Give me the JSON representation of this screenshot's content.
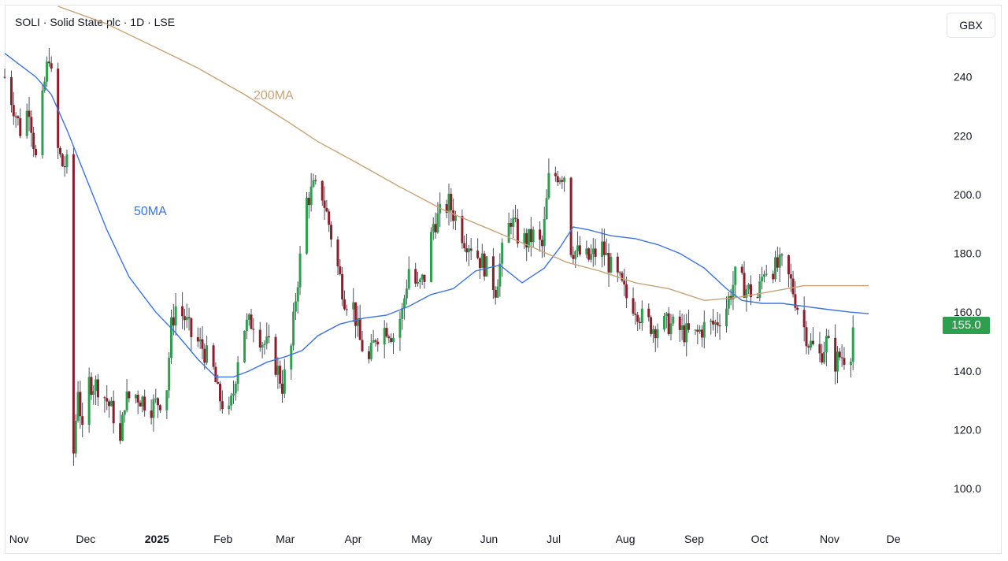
{
  "header": {
    "title": "SOLI · Solid State plc · 1D · LSE",
    "currency": "GBX"
  },
  "colors": {
    "up": "#2e9e4f",
    "down": "#8b1e2b",
    "ma50": "#3b73e0",
    "ma200": "#c8a276"
  },
  "chart_data": {
    "type": "candlestick",
    "symbol": "SOLI",
    "timeframe": "1D",
    "exchange": "LSE",
    "currency": "GBX",
    "last_price": "155.0",
    "y_ticks": [
      "100.0",
      "120.0",
      "140.0",
      "160.0",
      "180.0",
      "200.0",
      "220",
      "240"
    ],
    "ylim": [
      88,
      264
    ],
    "x_ticks": [
      {
        "label": "Nov",
        "date": "2024-11-01"
      },
      {
        "label": "Dec",
        "date": "2024-12-01"
      },
      {
        "label": "2025",
        "date": "2025-01-01",
        "bold": true
      },
      {
        "label": "Feb",
        "date": "2025-02-01"
      },
      {
        "label": "Mar",
        "date": "2025-03-01"
      },
      {
        "label": "Apr",
        "date": "2025-04-01"
      },
      {
        "label": "May",
        "date": "2025-05-01"
      },
      {
        "label": "Jun",
        "date": "2025-06-01"
      },
      {
        "label": "Jul",
        "date": "2025-07-01"
      },
      {
        "label": "Aug",
        "date": "2025-08-01"
      },
      {
        "label": "Sep",
        "date": "2025-09-01"
      },
      {
        "label": "Oct",
        "date": "2025-10-01"
      },
      {
        "label": "Nov",
        "date": "2025-11-01"
      },
      {
        "label": "De",
        "date": "2025-12-01"
      }
    ],
    "xlim": [
      "2024-10-25",
      "2025-12-10"
    ],
    "close_path": [
      [
        "2024-10-25",
        240
      ],
      [
        "2024-10-29",
        230
      ],
      [
        "2024-11-01",
        222
      ],
      [
        "2024-11-05",
        230
      ],
      [
        "2024-11-08",
        212
      ],
      [
        "2024-11-12",
        238
      ],
      [
        "2024-11-14",
        248
      ],
      [
        "2024-11-18",
        215
      ],
      [
        "2024-11-20",
        210
      ],
      [
        "2024-11-22",
        210
      ],
      [
        "2024-11-25",
        112
      ],
      [
        "2024-11-27",
        135
      ],
      [
        "2024-11-29",
        118
      ],
      [
        "2024-12-02",
        136
      ],
      [
        "2024-12-06",
        135
      ],
      [
        "2024-12-10",
        130
      ],
      [
        "2024-12-13",
        125
      ],
      [
        "2024-12-16",
        115
      ],
      [
        "2024-12-18",
        130
      ],
      [
        "2024-12-23",
        132
      ],
      [
        "2024-12-30",
        128
      ],
      [
        "2025-01-03",
        130
      ],
      [
        "2025-01-06",
        135
      ],
      [
        "2025-01-08",
        155
      ],
      [
        "2025-01-10",
        162
      ],
      [
        "2025-01-14",
        158
      ],
      [
        "2025-01-17",
        152
      ],
      [
        "2025-01-22",
        148
      ],
      [
        "2025-01-27",
        140
      ],
      [
        "2025-01-29",
        132
      ],
      [
        "2025-02-03",
        125
      ],
      [
        "2025-02-05",
        133
      ],
      [
        "2025-02-07",
        145
      ],
      [
        "2025-02-10",
        155
      ],
      [
        "2025-02-14",
        157
      ],
      [
        "2025-02-18",
        150
      ],
      [
        "2025-02-21",
        148
      ],
      [
        "2025-02-25",
        140
      ],
      [
        "2025-02-27",
        135
      ],
      [
        "2025-03-03",
        148
      ],
      [
        "2025-03-05",
        165
      ],
      [
        "2025-03-07",
        178
      ],
      [
        "2025-03-10",
        198
      ],
      [
        "2025-03-13",
        202
      ],
      [
        "2025-03-17",
        200
      ],
      [
        "2025-03-20",
        190
      ],
      [
        "2025-03-24",
        175
      ],
      [
        "2025-03-27",
        165
      ],
      [
        "2025-03-31",
        162
      ],
      [
        "2025-04-03",
        150
      ],
      [
        "2025-04-07",
        143
      ],
      [
        "2025-04-10",
        152
      ],
      [
        "2025-04-15",
        155
      ],
      [
        "2025-04-18",
        152
      ],
      [
        "2025-04-22",
        160
      ],
      [
        "2025-04-25",
        175
      ],
      [
        "2025-04-29",
        168
      ],
      [
        "2025-05-02",
        172
      ],
      [
        "2025-05-06",
        190
      ],
      [
        "2025-05-09",
        193
      ],
      [
        "2025-05-13",
        197
      ],
      [
        "2025-05-16",
        192
      ],
      [
        "2025-05-20",
        185
      ],
      [
        "2025-05-23",
        183
      ],
      [
        "2025-05-27",
        178
      ],
      [
        "2025-05-30",
        175
      ],
      [
        "2025-06-03",
        168
      ],
      [
        "2025-06-06",
        180
      ],
      [
        "2025-06-10",
        192
      ],
      [
        "2025-06-13",
        186
      ],
      [
        "2025-06-17",
        184
      ],
      [
        "2025-06-20",
        186
      ],
      [
        "2025-06-24",
        182
      ],
      [
        "2025-06-27",
        205
      ],
      [
        "2025-07-01",
        207
      ],
      [
        "2025-07-04",
        207
      ],
      [
        "2025-07-07",
        182
      ],
      [
        "2025-07-10",
        180
      ],
      [
        "2025-07-15",
        178
      ],
      [
        "2025-07-21",
        182
      ],
      [
        "2025-07-25",
        175
      ],
      [
        "2025-07-29",
        170
      ],
      [
        "2025-08-01",
        165
      ],
      [
        "2025-08-05",
        162
      ],
      [
        "2025-08-08",
        158
      ],
      [
        "2025-08-13",
        155
      ],
      [
        "2025-08-20",
        156
      ],
      [
        "2025-08-27",
        153
      ],
      [
        "2025-09-01",
        152
      ],
      [
        "2025-09-05",
        155
      ],
      [
        "2025-09-10",
        156
      ],
      [
        "2025-09-15",
        162
      ],
      [
        "2025-09-19",
        172
      ],
      [
        "2025-09-24",
        168
      ],
      [
        "2025-09-29",
        165
      ],
      [
        "2025-10-02",
        175
      ],
      [
        "2025-10-07",
        175
      ],
      [
        "2025-10-10",
        176
      ],
      [
        "2025-10-14",
        170
      ],
      [
        "2025-10-17",
        162
      ],
      [
        "2025-10-22",
        150
      ],
      [
        "2025-10-27",
        145
      ],
      [
        "2025-10-30",
        150
      ],
      [
        "2025-11-03",
        143
      ],
      [
        "2025-11-05",
        145
      ],
      [
        "2025-11-07",
        145
      ],
      [
        "2025-11-10",
        147
      ],
      [
        "2025-11-11",
        155
      ]
    ],
    "series": [
      {
        "name": "50MA",
        "type": "line",
        "label": "50MA",
        "points": [
          [
            "2024-10-25",
            248
          ],
          [
            "2024-11-01",
            244
          ],
          [
            "2024-11-08",
            240
          ],
          [
            "2024-11-15",
            234
          ],
          [
            "2024-11-22",
            222
          ],
          [
            "2024-12-01",
            205
          ],
          [
            "2024-12-10",
            188
          ],
          [
            "2024-12-20",
            172
          ],
          [
            "2025-01-01",
            160
          ],
          [
            "2025-01-10",
            153
          ],
          [
            "2025-01-20",
            144
          ],
          [
            "2025-01-28",
            138
          ],
          [
            "2025-02-05",
            138
          ],
          [
            "2025-02-12",
            140
          ],
          [
            "2025-02-20",
            143
          ],
          [
            "2025-03-01",
            145
          ],
          [
            "2025-03-08",
            147
          ],
          [
            "2025-03-15",
            152
          ],
          [
            "2025-03-25",
            156
          ],
          [
            "2025-04-05",
            158
          ],
          [
            "2025-04-15",
            159
          ],
          [
            "2025-04-25",
            162
          ],
          [
            "2025-05-05",
            166
          ],
          [
            "2025-05-15",
            168
          ],
          [
            "2025-05-25",
            174
          ],
          [
            "2025-06-05",
            176
          ],
          [
            "2025-06-15",
            170
          ],
          [
            "2025-06-25",
            175
          ],
          [
            "2025-07-02",
            182
          ],
          [
            "2025-07-08",
            189
          ],
          [
            "2025-07-15",
            188
          ],
          [
            "2025-07-25",
            186
          ],
          [
            "2025-08-05",
            185
          ],
          [
            "2025-08-15",
            183
          ],
          [
            "2025-08-25",
            180
          ],
          [
            "2025-09-05",
            175
          ],
          [
            "2025-09-15",
            168
          ],
          [
            "2025-09-22",
            164
          ],
          [
            "2025-10-01",
            163
          ],
          [
            "2025-10-10",
            163
          ],
          [
            "2025-10-20",
            162
          ],
          [
            "2025-10-30",
            161
          ],
          [
            "2025-11-10",
            160
          ],
          [
            "2025-11-18",
            159.5
          ]
        ]
      },
      {
        "name": "200MA",
        "type": "line",
        "label": "200MA",
        "points": [
          [
            "2024-11-18",
            264
          ],
          [
            "2024-12-10",
            258
          ],
          [
            "2025-01-01",
            250
          ],
          [
            "2025-01-20",
            243
          ],
          [
            "2025-02-10",
            234
          ],
          [
            "2025-03-01",
            225
          ],
          [
            "2025-03-15",
            218
          ],
          [
            "2025-04-01",
            211
          ],
          [
            "2025-04-20",
            203
          ],
          [
            "2025-05-10",
            195
          ],
          [
            "2025-06-01",
            188
          ],
          [
            "2025-06-20",
            182
          ],
          [
            "2025-07-05",
            177
          ],
          [
            "2025-07-20",
            174
          ],
          [
            "2025-08-05",
            170
          ],
          [
            "2025-08-20",
            168
          ],
          [
            "2025-09-05",
            164
          ],
          [
            "2025-09-20",
            165
          ],
          [
            "2025-10-05",
            167
          ],
          [
            "2025-10-20",
            169
          ],
          [
            "2025-11-01",
            169
          ],
          [
            "2025-11-18",
            169
          ]
        ]
      }
    ]
  }
}
